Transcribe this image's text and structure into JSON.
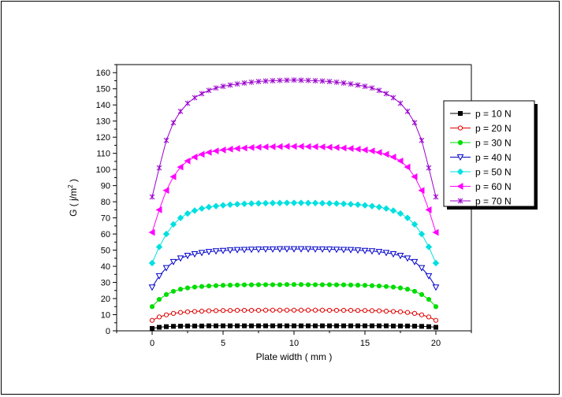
{
  "chart_data": {
    "type": "line",
    "title": "",
    "xlabel": "Plate width ( mm )",
    "ylabel": "G ( j/m",
    "ylabel_sup": "2",
    "ylabel_end": " )",
    "xlim": [
      -2.5,
      22.5
    ],
    "ylim": [
      0,
      165
    ],
    "xticks": [
      0,
      5,
      10,
      15,
      20
    ],
    "yticks": [
      0,
      10,
      20,
      30,
      40,
      50,
      60,
      70,
      80,
      90,
      100,
      110,
      120,
      130,
      140,
      150,
      160
    ],
    "grid": false,
    "legend_position": "top-right",
    "x": [
      0,
      0.5,
      1,
      1.5,
      2,
      2.5,
      3,
      3.5,
      4,
      4.5,
      5,
      5.5,
      6,
      6.5,
      7,
      7.5,
      8,
      8.5,
      9,
      9.5,
      10,
      10.5,
      11,
      11.5,
      12,
      12.5,
      13,
      13.5,
      14,
      14.5,
      15,
      15.5,
      16,
      16.5,
      17,
      17.5,
      18,
      18.5,
      19,
      19.5,
      20
    ],
    "series": [
      {
        "name": "p = 10 N",
        "color": "#000000",
        "marker": "square",
        "filled": true,
        "values": [
          1.5,
          2.2,
          2.6,
          2.8,
          2.9,
          3.0,
          3.0,
          3.0,
          3.1,
          3.1,
          3.1,
          3.1,
          3.1,
          3.1,
          3.1,
          3.1,
          3.1,
          3.1,
          3.1,
          3.1,
          3.1,
          3.1,
          3.1,
          3.1,
          3.1,
          3.1,
          3.1,
          3.1,
          3.1,
          3.1,
          3.1,
          3.1,
          3.1,
          3.1,
          3.0,
          3.0,
          3.0,
          2.9,
          2.8,
          2.6,
          2.2
        ]
      },
      {
        "name": "p = 20 N",
        "color": "#e00000",
        "marker": "circle",
        "filled": false,
        "values": [
          6.5,
          8.6,
          9.9,
          10.8,
          11.4,
          11.8,
          12.0,
          12.2,
          12.4,
          12.5,
          12.6,
          12.6,
          12.7,
          12.7,
          12.7,
          12.7,
          12.8,
          12.8,
          12.8,
          12.8,
          12.8,
          12.8,
          12.8,
          12.8,
          12.8,
          12.7,
          12.7,
          12.7,
          12.7,
          12.6,
          12.6,
          12.5,
          12.4,
          12.2,
          12.0,
          11.8,
          11.4,
          10.8,
          9.9,
          8.6,
          6.5
        ]
      },
      {
        "name": "p = 30 N",
        "color": "#00dd00",
        "marker": "circle",
        "filled": true,
        "values": [
          15.0,
          19.5,
          22.5,
          24.5,
          25.8,
          26.6,
          27.1,
          27.5,
          27.8,
          28.0,
          28.2,
          28.3,
          28.4,
          28.5,
          28.5,
          28.6,
          28.6,
          28.6,
          28.6,
          28.7,
          28.7,
          28.7,
          28.6,
          28.6,
          28.6,
          28.6,
          28.5,
          28.5,
          28.4,
          28.3,
          28.2,
          28.0,
          27.8,
          27.5,
          27.1,
          26.6,
          25.8,
          24.5,
          22.5,
          19.5,
          15.0
        ]
      },
      {
        "name": "p = 40 N",
        "color": "#0000cc",
        "marker": "triangle-down",
        "filled": false,
        "values": [
          27.0,
          34.0,
          39.0,
          42.8,
          45.0,
          46.6,
          47.6,
          48.4,
          49.0,
          49.4,
          49.7,
          50.0,
          50.2,
          50.3,
          50.4,
          50.5,
          50.6,
          50.6,
          50.7,
          50.7,
          50.7,
          50.7,
          50.7,
          50.6,
          50.6,
          50.5,
          50.4,
          50.3,
          50.2,
          50.0,
          49.7,
          49.4,
          49.0,
          48.4,
          47.6,
          46.6,
          45.0,
          42.8,
          39.0,
          34.0,
          27.0
        ]
      },
      {
        "name": "p = 50 N",
        "color": "#00e0e0",
        "marker": "diamond",
        "filled": true,
        "values": [
          42.0,
          52.0,
          60.0,
          66.0,
          70.0,
          72.7,
          74.5,
          75.8,
          76.7,
          77.3,
          77.8,
          78.2,
          78.5,
          78.7,
          78.9,
          79.0,
          79.1,
          79.2,
          79.2,
          79.3,
          79.3,
          79.3,
          79.2,
          79.2,
          79.1,
          79.0,
          78.9,
          78.7,
          78.5,
          78.2,
          77.8,
          77.3,
          76.7,
          75.8,
          74.5,
          72.7,
          70.0,
          66.0,
          60.0,
          52.0,
          42.0
        ]
      },
      {
        "name": "p = 60 N",
        "color": "#ff00ff",
        "marker": "triangle-left",
        "filled": true,
        "values": [
          61.0,
          75.0,
          87.0,
          95.5,
          101.5,
          105.3,
          107.7,
          109.4,
          110.6,
          111.5,
          112.1,
          112.6,
          113.0,
          113.3,
          113.6,
          113.8,
          114.0,
          114.1,
          114.2,
          114.3,
          114.3,
          114.3,
          114.2,
          114.1,
          114.0,
          113.8,
          113.6,
          113.3,
          113.0,
          112.6,
          112.1,
          111.5,
          110.6,
          109.4,
          107.7,
          105.3,
          101.5,
          95.5,
          87.0,
          75.0,
          61.0
        ]
      },
      {
        "name": "p = 70 N",
        "color": "#9900cc",
        "marker": "star",
        "filled": false,
        "values": [
          83.0,
          101.0,
          118.0,
          129.0,
          136.0,
          141.0,
          144.5,
          147.0,
          149.0,
          150.5,
          151.5,
          152.3,
          153.0,
          153.6,
          154.1,
          154.5,
          154.8,
          155.0,
          155.2,
          155.3,
          155.4,
          155.3,
          155.2,
          155.0,
          154.8,
          154.5,
          154.1,
          153.6,
          153.0,
          152.3,
          151.5,
          150.5,
          149.0,
          147.0,
          144.5,
          141.0,
          136.0,
          129.0,
          118.0,
          101.0,
          83.0
        ]
      }
    ]
  }
}
